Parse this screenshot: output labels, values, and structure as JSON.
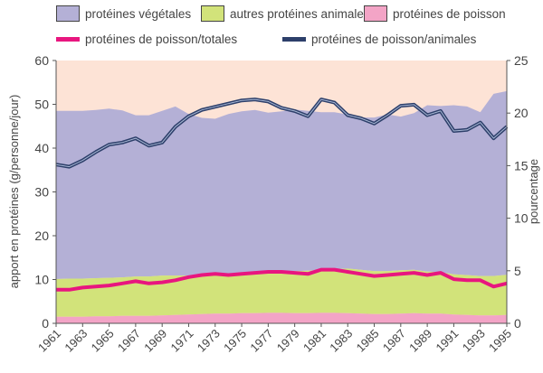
{
  "legend": {
    "vegetal": "protéines végétales",
    "animal": "autres protéines animales",
    "fish": "protéines de poisson",
    "ratio_total": "protéines de poisson/totales",
    "ratio_animal": "protéines de poisson/animales"
  },
  "colors": {
    "background_band": "#fde3d6",
    "vegetal": "#b4b0d6",
    "animal": "#d2e37a",
    "fish": "#f3a4c6",
    "ratio_total": "#e8167f",
    "ratio_animal": "#2d3f6a",
    "ratio_animal_inner": "#a9b8d6"
  },
  "chart_data": {
    "type": "area",
    "x": [
      1961,
      1962,
      1963,
      1964,
      1965,
      1966,
      1967,
      1968,
      1969,
      1970,
      1971,
      1972,
      1973,
      1974,
      1975,
      1976,
      1977,
      1978,
      1979,
      1980,
      1981,
      1982,
      1983,
      1984,
      1985,
      1986,
      1987,
      1988,
      1989,
      1990,
      1991,
      1992,
      1993,
      1994,
      1995
    ],
    "x_ticks": [
      1961,
      1963,
      1965,
      1967,
      1969,
      1971,
      1973,
      1975,
      1977,
      1979,
      1981,
      1983,
      1985,
      1987,
      1989,
      1991,
      1993,
      1995
    ],
    "ylabel": "apport en protéines (g/personne/jour)",
    "ylim": [
      0,
      60
    ],
    "y_ticks": [
      0,
      10,
      20,
      30,
      40,
      50,
      60
    ],
    "y2label": "pourcentage",
    "y2lim": [
      0,
      25
    ],
    "y2_ticks": [
      0,
      5,
      10,
      15,
      20,
      25
    ],
    "series": [
      {
        "name": "protéines de poisson",
        "axis": "left",
        "kind": "stacked-area",
        "values": [
          1.5,
          1.5,
          1.5,
          1.6,
          1.6,
          1.7,
          1.7,
          1.7,
          1.8,
          1.9,
          2.0,
          2.1,
          2.2,
          2.2,
          2.3,
          2.3,
          2.4,
          2.4,
          2.3,
          2.3,
          2.4,
          2.4,
          2.3,
          2.2,
          2.1,
          2.1,
          2.2,
          2.3,
          2.2,
          2.2,
          2.0,
          1.9,
          1.8,
          1.8,
          1.9
        ]
      },
      {
        "name": "autres protéines animales",
        "axis": "left",
        "kind": "stacked-area",
        "values": [
          8.6,
          8.7,
          8.7,
          8.7,
          8.8,
          8.8,
          9.0,
          9.0,
          9.1,
          9.0,
          8.9,
          8.9,
          8.9,
          8.8,
          9.0,
          9.2,
          9.3,
          9.4,
          9.6,
          9.7,
          9.8,
          10.0,
          10.2,
          10.0,
          9.8,
          9.8,
          9.9,
          9.9,
          9.6,
          9.5,
          9.2,
          9.1,
          9.0,
          9.0,
          9.2
        ]
      },
      {
        "name": "protéines végétales",
        "axis": "left",
        "kind": "stacked-area",
        "values": [
          38.4,
          38.3,
          38.3,
          38.4,
          38.6,
          38.1,
          36.8,
          36.8,
          37.6,
          38.6,
          36.9,
          35.9,
          35.6,
          36.8,
          37.1,
          37.2,
          36.4,
          36.6,
          36.9,
          36.5,
          36.0,
          35.8,
          35.2,
          34.8,
          35.1,
          35.8,
          35.1,
          35.8,
          38.0,
          37.9,
          38.6,
          38.5,
          37.4,
          41.6,
          41.9
        ]
      },
      {
        "name": "protéines de poisson/totales",
        "axis": "right",
        "kind": "line",
        "values": [
          3.2,
          3.2,
          3.4,
          3.5,
          3.6,
          3.8,
          4.0,
          3.8,
          3.9,
          4.1,
          4.4,
          4.6,
          4.7,
          4.6,
          4.7,
          4.8,
          4.9,
          4.9,
          4.8,
          4.7,
          5.1,
          5.1,
          4.9,
          4.7,
          4.5,
          4.6,
          4.7,
          4.8,
          4.6,
          4.8,
          4.2,
          4.1,
          4.1,
          3.5,
          3.8
        ]
      },
      {
        "name": "protéines de poisson/animales",
        "axis": "right",
        "kind": "line",
        "values": [
          15.1,
          14.9,
          15.5,
          16.3,
          17.0,
          17.2,
          17.6,
          16.9,
          17.2,
          18.7,
          19.7,
          20.3,
          20.6,
          20.9,
          21.2,
          21.3,
          21.1,
          20.5,
          20.2,
          19.7,
          21.3,
          21.0,
          19.8,
          19.5,
          19.0,
          19.8,
          20.7,
          20.8,
          19.8,
          20.2,
          18.3,
          18.4,
          19.1,
          17.6,
          18.7
        ]
      }
    ]
  }
}
